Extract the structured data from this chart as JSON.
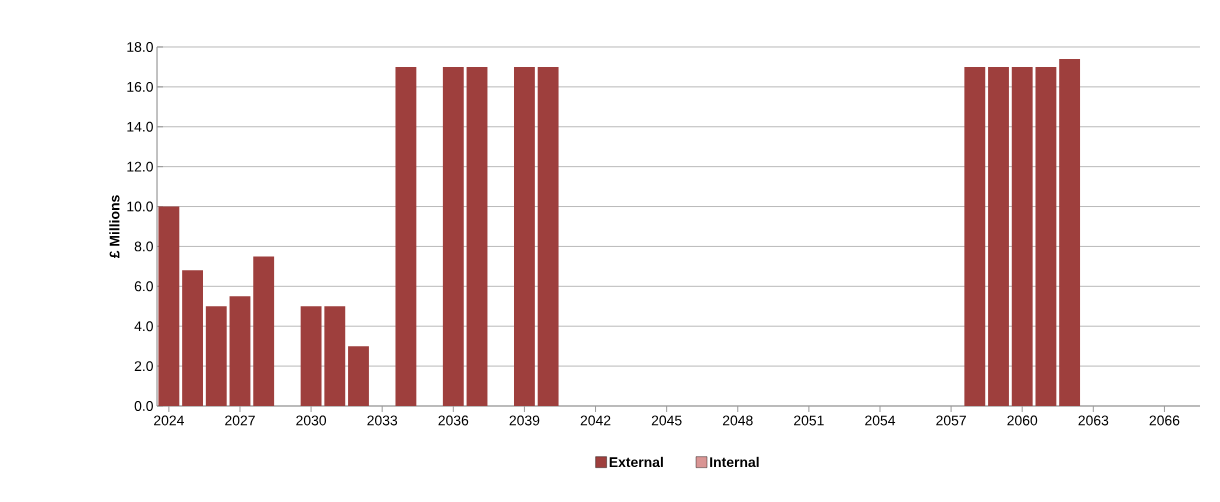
{
  "chart_data": {
    "type": "bar",
    "ylabel": "£ Millions",
    "x": [
      2024,
      2025,
      2026,
      2027,
      2028,
      2029,
      2030,
      2031,
      2032,
      2033,
      2034,
      2035,
      2036,
      2037,
      2038,
      2039,
      2040,
      2041,
      2042,
      2043,
      2044,
      2045,
      2046,
      2047,
      2048,
      2049,
      2050,
      2051,
      2052,
      2053,
      2054,
      2055,
      2056,
      2057,
      2058,
      2059,
      2060,
      2061,
      2062
    ],
    "series": [
      {
        "name": "External",
        "color": "#9e3f3d",
        "values": [
          10.0,
          6.8,
          5.0,
          5.5,
          7.5,
          null,
          5.0,
          5.0,
          3.0,
          null,
          17.0,
          null,
          17.0,
          17.0,
          null,
          17.0,
          17.0,
          null,
          null,
          null,
          null,
          null,
          null,
          null,
          null,
          null,
          null,
          null,
          null,
          null,
          null,
          null,
          null,
          null,
          17.0,
          17.0,
          17.0,
          17.0,
          17.4
        ]
      },
      {
        "name": "Internal",
        "color": "#d99594",
        "values": [
          null,
          null,
          null,
          null,
          null,
          null,
          null,
          null,
          null,
          null,
          null,
          null,
          null,
          null,
          null,
          null,
          null,
          null,
          null,
          null,
          null,
          null,
          null,
          null,
          null,
          null,
          null,
          null,
          null,
          null,
          null,
          null,
          null,
          null,
          null,
          null,
          null,
          null,
          null
        ]
      }
    ],
    "xlim": [
      2023.5,
      2067.5
    ],
    "xticks": [
      2024,
      2027,
      2030,
      2033,
      2036,
      2039,
      2042,
      2045,
      2048,
      2051,
      2054,
      2057,
      2060,
      2063,
      2066
    ],
    "ylim": [
      0,
      18
    ],
    "yticks": [
      {
        "value": 0,
        "label": "0.0"
      },
      {
        "value": 2,
        "label": "2.0"
      },
      {
        "value": 4,
        "label": "4.0"
      },
      {
        "value": 6,
        "label": "6.0"
      },
      {
        "value": 8,
        "label": "8.0"
      },
      {
        "value": 10,
        "label": "10.0"
      },
      {
        "value": 12,
        "label": "12.0"
      },
      {
        "value": 14,
        "label": "14.0"
      },
      {
        "value": 16,
        "label": "16.0"
      },
      {
        "value": 18,
        "label": "18.0"
      }
    ],
    "grid": "y",
    "legend": "bottom"
  }
}
